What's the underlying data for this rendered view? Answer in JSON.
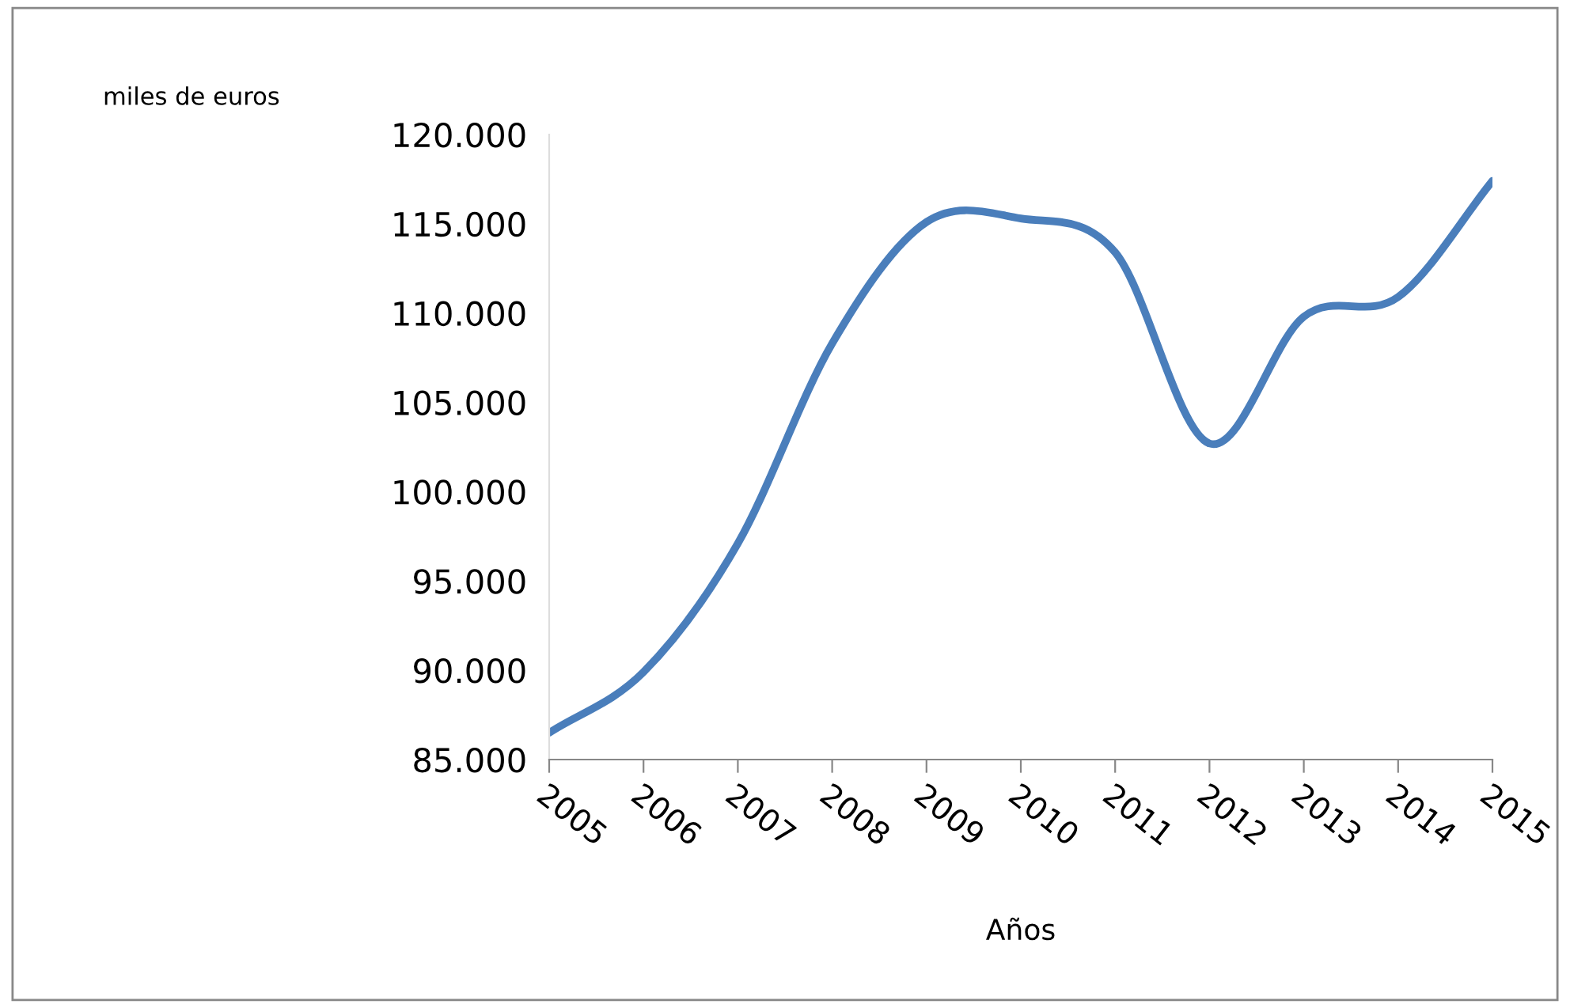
{
  "chart_data": {
    "type": "line",
    "ylabel": "miles de euros",
    "xlabel": "Años",
    "categories": [
      "2005",
      "2006",
      "2007",
      "2008",
      "2009",
      "2010",
      "2011",
      "2012",
      "2013",
      "2014",
      "2015"
    ],
    "series": [
      {
        "color": "#4a7ebb",
        "values": [
          86500,
          89900,
          97100,
          108300,
          115100,
          115300,
          113400,
          102700,
          109800,
          110900,
          117400
        ]
      }
    ],
    "ylim": [
      85000,
      120000
    ],
    "yticks": [
      {
        "value": 85000,
        "label": "85.000"
      },
      {
        "value": 90000,
        "label": "90.000"
      },
      {
        "value": 95000,
        "label": "95.000"
      },
      {
        "value": 100000,
        "label": "100.000"
      },
      {
        "value": 105000,
        "label": "105.000"
      },
      {
        "value": 110000,
        "label": "110.000"
      },
      {
        "value": 115000,
        "label": "115.000"
      },
      {
        "value": 120000,
        "label": "120.000"
      }
    ],
    "grid": false,
    "legend": false,
    "marker": "none",
    "line_style": "solid"
  }
}
